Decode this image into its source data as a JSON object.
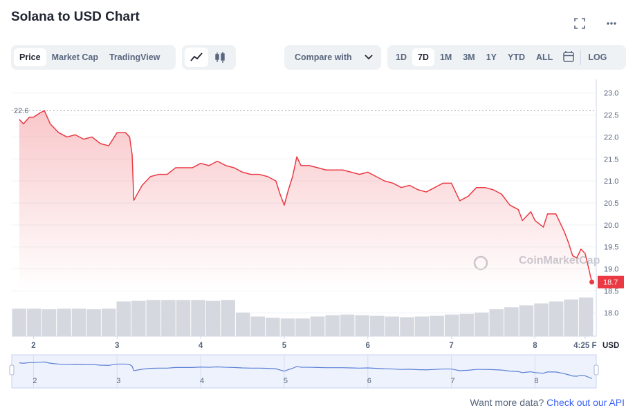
{
  "header": {
    "title": "Solana to USD Chart"
  },
  "tabs": [
    "Price",
    "Market Cap",
    "TradingView"
  ],
  "compare": "Compare with",
  "ranges": [
    "1D",
    "7D",
    "1M",
    "3M",
    "1Y",
    "YTD",
    "ALL"
  ],
  "log": "LOG",
  "footer": {
    "text": "Want more data?",
    "link": "Check out our API"
  },
  "chart_data": {
    "type": "line",
    "color": "#ea3943",
    "y_label": "USD",
    "watermark": "CoinMarketCap",
    "high": 22.6,
    "last": 18.7,
    "xlim": [
      1.74,
      8.7
    ],
    "ylim": [
      17.47,
      23.31
    ],
    "xticks": [
      2,
      3,
      4,
      5,
      6,
      7,
      8,
      {
        "value": 8.6,
        "label": "4:25 F"
      }
    ],
    "yticks": [
      {
        "value": 18,
        "label": "18.0"
      },
      18.5,
      {
        "value": 19,
        "label": "19.0"
      },
      19.5,
      {
        "value": 20,
        "label": "20.0"
      },
      20.5,
      {
        "value": 21,
        "label": "21.0"
      },
      21.5,
      {
        "value": 22,
        "label": "22.0"
      },
      22.5,
      {
        "value": 23,
        "label": "23.0"
      }
    ],
    "x": [
      1.83,
      1.88,
      1.95,
      2.0,
      2.08,
      2.13,
      2.2,
      2.3,
      2.4,
      2.5,
      2.6,
      2.7,
      2.8,
      2.9,
      3.0,
      3.1,
      3.15,
      3.18,
      3.2,
      3.3,
      3.4,
      3.5,
      3.6,
      3.7,
      3.8,
      3.9,
      4.0,
      4.1,
      4.2,
      4.3,
      4.4,
      4.5,
      4.6,
      4.7,
      4.8,
      4.9,
      4.95,
      5.0,
      5.05,
      5.1,
      5.15,
      5.2,
      5.3,
      5.4,
      5.5,
      5.6,
      5.7,
      5.8,
      5.9,
      6.0,
      6.1,
      6.2,
      6.3,
      6.4,
      6.5,
      6.6,
      6.7,
      6.8,
      6.9,
      7.0,
      7.05,
      7.1,
      7.2,
      7.3,
      7.4,
      7.5,
      7.6,
      7.7,
      7.8,
      7.85,
      7.95,
      8.0,
      8.1,
      8.15,
      8.25,
      8.35,
      8.4,
      8.45,
      8.5,
      8.55,
      8.6,
      8.65,
      8.68
    ],
    "values": [
      22.4,
      22.3,
      22.45,
      22.45,
      22.55,
      22.6,
      22.3,
      22.1,
      22.0,
      22.05,
      21.95,
      22.0,
      21.85,
      21.8,
      22.1,
      22.1,
      22.0,
      21.6,
      20.56,
      20.9,
      21.1,
      21.15,
      21.15,
      21.3,
      21.3,
      21.3,
      21.4,
      21.35,
      21.45,
      21.35,
      21.3,
      21.2,
      21.15,
      21.15,
      21.1,
      21.0,
      20.7,
      20.45,
      20.8,
      21.1,
      21.55,
      21.35,
      21.35,
      21.3,
      21.25,
      21.25,
      21.25,
      21.2,
      21.15,
      21.2,
      21.1,
      21.0,
      20.95,
      20.85,
      20.9,
      20.8,
      20.75,
      20.85,
      20.95,
      20.95,
      20.75,
      20.55,
      20.65,
      20.85,
      20.85,
      20.8,
      20.7,
      20.45,
      20.35,
      20.1,
      20.3,
      20.1,
      19.95,
      20.25,
      20.25,
      19.85,
      19.6,
      19.3,
      19.25,
      19.45,
      19.35,
      18.95,
      18.7
    ],
    "volume": {
      "color": "#d5d9df",
      "lim": [
        0,
        60
      ],
      "values": [
        42,
        42,
        41,
        42,
        42,
        41,
        42,
        53,
        54,
        55,
        55,
        55,
        55,
        54,
        55,
        36,
        30,
        28,
        27,
        27,
        30,
        32,
        33,
        32,
        31,
        30,
        29,
        30,
        31,
        33,
        34,
        36,
        41,
        44,
        47,
        50,
        53,
        56,
        59
      ]
    }
  }
}
